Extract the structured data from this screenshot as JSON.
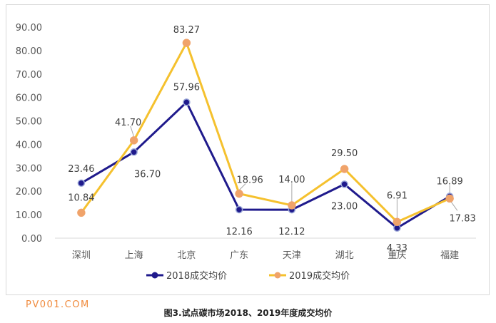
{
  "chart_data": {
    "type": "line",
    "categories": [
      "深圳",
      "上海",
      "北京",
      "广东",
      "天津",
      "湖北",
      "重庆",
      "福建"
    ],
    "series": [
      {
        "name": "2018成交均价",
        "color": "#1f1a8c",
        "values": [
          23.46,
          36.7,
          57.96,
          12.16,
          12.12,
          23.0,
          4.33,
          17.83
        ],
        "labels": [
          "23.46",
          "36.70",
          "57.96",
          "12.16",
          "12.12",
          "23.00",
          "4.33",
          "17.83"
        ]
      },
      {
        "name": "2019成交均价",
        "color": "#f5c12e",
        "marker_color": "#f0a36a",
        "values": [
          10.84,
          41.7,
          83.27,
          18.96,
          14.0,
          29.5,
          6.91,
          16.89
        ],
        "labels": [
          "10.84",
          "41.70",
          "83.27",
          "18.96",
          "14.00",
          "29.50",
          "6.91",
          "16.89"
        ]
      }
    ],
    "yticks": [
      "0.00",
      "10.00",
      "20.00",
      "30.00",
      "40.00",
      "50.00",
      "60.00",
      "70.00",
      "80.00",
      "90.00"
    ],
    "ylim": [
      0,
      90
    ],
    "grid": false,
    "legend_position": "bottom"
  },
  "watermark": "PV001.COM",
  "caption": "图3.试点碳市场2018、2019年度成交均价"
}
